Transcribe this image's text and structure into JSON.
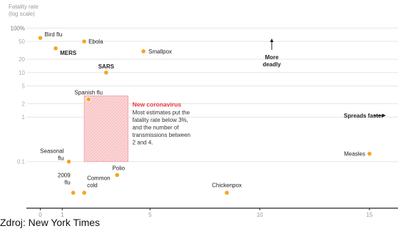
{
  "chart_data": {
    "type": "scatter",
    "ylabel_lines": [
      "Fatality rate",
      "(log scale)"
    ],
    "x_ticks": [
      0,
      1,
      5,
      10,
      15
    ],
    "xlim": [
      -0.7,
      16.3
    ],
    "y_scale": "log",
    "y_ticks": [
      {
        "value": 100,
        "label": "100%"
      },
      {
        "value": 50,
        "label": "50"
      },
      {
        "value": 20,
        "label": "20"
      },
      {
        "value": 10,
        "label": "10"
      },
      {
        "value": 5,
        "label": "5"
      },
      {
        "value": 2,
        "label": "2"
      },
      {
        "value": 1,
        "label": "1"
      },
      {
        "value": 0.1,
        "label": "0.1"
      }
    ],
    "ylim": [
      0.009,
      105
    ],
    "grid": true,
    "point_color": "#f5a51d",
    "points": [
      {
        "name": "Bird flu",
        "x": 0.0,
        "y": 60
      },
      {
        "name": "MERS",
        "x": 0.7,
        "y": 35
      },
      {
        "name": "Ebola",
        "x": 2.0,
        "y": 50
      },
      {
        "name": "Smallpox",
        "x": 4.7,
        "y": 30
      },
      {
        "name": "SARS",
        "x": 3.0,
        "y": 10
      },
      {
        "name": "Spanish flu",
        "x": 2.2,
        "y": 2.5
      },
      {
        "name": "Seasonal flu",
        "x": 1.3,
        "y": 0.1
      },
      {
        "name": "Polio",
        "x": 3.5,
        "y": 0.05
      },
      {
        "name": "2009 flu",
        "x": 1.5,
        "y": 0.02
      },
      {
        "name": "Common cold",
        "x": 2.0,
        "y": 0.02
      },
      {
        "name": "Chickenpox",
        "x": 8.5,
        "y": 0.02
      },
      {
        "name": "Measles",
        "x": 15.0,
        "y": 0.15
      }
    ],
    "highlight_region": {
      "x_range": [
        2.0,
        4.0
      ],
      "y_range": [
        0.1,
        3.0
      ],
      "color": "#e8333a",
      "title": "New coronavirus",
      "text_lines": [
        "Most estimates put the",
        "fatality rate below 3%,",
        "and the number of",
        "transmissions between",
        "2 and 4."
      ]
    },
    "annotations": {
      "more_deadly": [
        "More",
        "deadly"
      ],
      "spreads_faster": "Spreads faster"
    }
  },
  "source": "Zdroj: New York Times"
}
